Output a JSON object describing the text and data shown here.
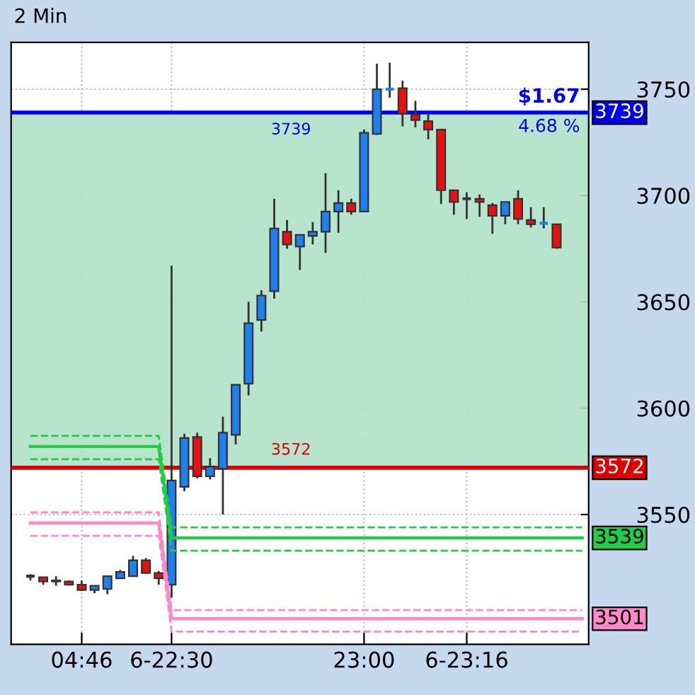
{
  "chart_data": {
    "type": "candlestick",
    "title": "2 Min",
    "categories": [
      null,
      null,
      null,
      null,
      null,
      "04:46",
      null,
      null,
      null,
      null,
      null,
      null,
      "6-22:30",
      null,
      null,
      null,
      null,
      null,
      null,
      null,
      null,
      null,
      null,
      null,
      null,
      null,
      null,
      "23:00",
      null,
      null,
      null,
      null,
      null,
      null,
      null,
      "6-23:16",
      null,
      null,
      null,
      null,
      null,
      null,
      null,
      null,
      null
    ],
    "ohlc": [
      null,
      [
        3521,
        3522,
        3519,
        3521
      ],
      [
        3520.5,
        3520.5,
        3517,
        3518.5
      ],
      [
        3519,
        3521,
        3516.5,
        3518.5
      ],
      [
        3518.5,
        3519,
        3517,
        3517
      ],
      [
        3517,
        3519,
        3514,
        3514.5
      ],
      [
        3514.5,
        3516.5,
        3513,
        3516.5
      ],
      [
        3515,
        3521,
        3512.5,
        3521
      ],
      [
        3520,
        3524,
        3520,
        3523
      ],
      [
        3521,
        3530.5,
        3521,
        3528.5
      ],
      [
        3528.5,
        3529.5,
        3522,
        3522.5
      ],
      [
        3522.5,
        3523.5,
        3517,
        3520
      ],
      [
        3517,
        3667,
        3511,
        3566
      ],
      [
        3563,
        3588,
        3561,
        3586
      ],
      [
        3586.5,
        3588.5,
        3567,
        3568
      ],
      [
        3568,
        3576.5,
        3566.5,
        3572.5
      ],
      [
        3571.5,
        3596,
        3550,
        3588.5
      ],
      [
        3587.5,
        3611,
        3583,
        3611
      ],
      [
        3611.5,
        3650,
        3606,
        3640
      ],
      [
        3641.5,
        3655.5,
        3636,
        3653
      ],
      [
        3655,
        3698.5,
        3651.5,
        3684.5
      ],
      [
        3683,
        3688.5,
        3675,
        3677
      ],
      [
        3676,
        3681.5,
        3665,
        3681.5
      ],
      [
        3681,
        3687.5,
        3677,
        3683
      ],
      [
        3683,
        3710.5,
        3673,
        3692.5
      ],
      [
        3692.5,
        3702.5,
        3682.5,
        3696.5
      ],
      [
        3696.5,
        3698.5,
        3691,
        3692.5
      ],
      [
        3692.5,
        3731,
        3692.5,
        3729.5
      ],
      [
        3729,
        3762,
        3728.5,
        3750
      ],
      [
        3750,
        3762.5,
        3746,
        3750
      ],
      [
        3750.5,
        3754,
        3732.5,
        3738.5
      ],
      [
        3738,
        3744.5,
        3732,
        3735.5
      ],
      [
        3735,
        3738,
        3726.5,
        3731
      ],
      [
        3731,
        3731,
        3696,
        3702.5
      ],
      [
        3702.5,
        3702.5,
        3691,
        3697
      ],
      [
        3698.5,
        3701.5,
        3689,
        3698.5
      ],
      [
        3698.5,
        3700.5,
        3690,
        3697
      ],
      [
        3695.5,
        3696.5,
        3682,
        3690.5
      ],
      [
        3690.5,
        3697,
        3686.5,
        3697
      ],
      [
        3698.5,
        3702.5,
        3686.5,
        3689
      ],
      [
        3688.5,
        3694.5,
        3685,
        3686.5
      ],
      [
        3687,
        3694.5,
        3684.5,
        3687
      ],
      [
        3686.5,
        3686.5,
        3675,
        3675.5
      ],
      null,
      null
    ],
    "colors": [
      null,
      "#333333",
      "#e81010",
      "#e81010",
      "#e81010",
      "#e81010",
      "#1e7ff0",
      "#1e7ff0",
      "#1e7ff0",
      "#1e7ff0",
      "#e81010",
      "#e81010",
      "#1e7ff0",
      "#1e7ff0",
      "#e81010",
      "#1e7ff0",
      "#1e7ff0",
      "#1e7ff0",
      "#1e7ff0",
      "#1e7ff0",
      "#1e7ff0",
      "#e81010",
      "#1e7ff0",
      "#1e7ff0",
      "#1e7ff0",
      "#1e7ff0",
      "#e81010",
      "#1e7ff0",
      "#1e7ff0",
      "#1e7ff0",
      "#e81010",
      "#e81010",
      "#e81010",
      "#e81010",
      "#e81010",
      "#333333",
      "#e81010",
      "#e81010",
      "#1e7ff0",
      "#e81010",
      "#e81010",
      "#1e7ff0",
      "#e81010",
      null,
      null
    ],
    "series": [
      {
        "type": "line",
        "color": "#22cc44",
        "line_style": "dashed",
        "values": [
          null,
          3587,
          3587,
          3587,
          3587,
          3587,
          3587,
          3587,
          3587,
          3587,
          3587,
          3587,
          3544,
          3544,
          3544,
          3544,
          3544,
          3544,
          3544,
          3544,
          3544,
          3544,
          3544,
          3544,
          3544,
          3544,
          3544,
          3544,
          3544,
          3544,
          3544,
          3544,
          3544,
          3544,
          3544,
          3544,
          3544,
          3544,
          3544,
          3544,
          3544,
          3544,
          3544,
          3544,
          3544
        ]
      },
      {
        "type": "line",
        "color": "#22cc44",
        "line_style": "solid",
        "values": [
          null,
          3582,
          3582,
          3582,
          3582,
          3582,
          3582,
          3582,
          3582,
          3582,
          3582,
          3582,
          3539,
          3539,
          3539,
          3539,
          3539,
          3539,
          3539,
          3539,
          3539,
          3539,
          3539,
          3539,
          3539,
          3539,
          3539,
          3539,
          3539,
          3539,
          3539,
          3539,
          3539,
          3539,
          3539,
          3539,
          3539,
          3539,
          3539,
          3539,
          3539,
          3539,
          3539,
          3539,
          3539
        ],
        "value_labels": [
          null,
          null,
          null,
          null,
          null,
          null,
          null,
          null,
          null,
          null,
          null,
          null,
          null,
          null,
          null,
          null,
          null,
          null,
          null,
          null,
          null,
          null,
          null,
          null,
          null,
          null,
          null,
          null,
          null,
          null,
          null,
          null,
          null,
          null,
          null,
          null,
          null,
          null,
          null,
          null,
          null,
          null,
          null,
          null,
          "3539"
        ]
      },
      {
        "type": "line",
        "color": "#22cc44",
        "line_style": "dashed",
        "values": [
          null,
          3576,
          3576,
          3576,
          3576,
          3576,
          3576,
          3576,
          3576,
          3576,
          3576,
          3576,
          3533,
          3533,
          3533,
          3533,
          3533,
          3533,
          3533,
          3533,
          3533,
          3533,
          3533,
          3533,
          3533,
          3533,
          3533,
          3533,
          3533,
          3533,
          3533,
          3533,
          3533,
          3533,
          3533,
          3533,
          3533,
          3533,
          3533,
          3533,
          3533,
          3533,
          3533,
          3533,
          3533
        ]
      },
      {
        "type": "line",
        "color": "#ff88c8",
        "line_style": "dashed",
        "values": [
          null,
          3551,
          3551,
          3551,
          3551,
          3551,
          3551,
          3551,
          3551,
          3551,
          3551,
          3551,
          3505,
          3505,
          3505,
          3505,
          3505,
          3505,
          3505,
          3505,
          3505,
          3505,
          3505,
          3505,
          3505,
          3505,
          3505,
          3505,
          3505,
          3505,
          3505,
          3505,
          3505,
          3505,
          3505,
          3505,
          3505,
          3505,
          3505,
          3505,
          3505,
          3505,
          3505,
          3505,
          3505
        ]
      },
      {
        "type": "line",
        "color": "#ff88c8",
        "line_style": "solid",
        "values": [
          null,
          3546,
          3546,
          3546,
          3546,
          3546,
          3546,
          3546,
          3546,
          3546,
          3546,
          3546,
          3501,
          3501,
          3501,
          3501,
          3501,
          3501,
          3501,
          3501,
          3501,
          3501,
          3501,
          3501,
          3501,
          3501,
          3501,
          3501,
          3501,
          3501,
          3501,
          3501,
          3501,
          3501,
          3501,
          3501,
          3501,
          3501,
          3501,
          3501,
          3501,
          3501,
          3501,
          3501,
          3501
        ],
        "value_labels": [
          null,
          null,
          null,
          null,
          null,
          null,
          null,
          null,
          null,
          null,
          null,
          null,
          null,
          null,
          null,
          null,
          null,
          null,
          null,
          null,
          null,
          null,
          null,
          null,
          null,
          null,
          null,
          null,
          null,
          null,
          null,
          null,
          null,
          null,
          null,
          null,
          null,
          null,
          null,
          null,
          null,
          null,
          null,
          null,
          "3501"
        ]
      },
      {
        "type": "line",
        "color": "#ff88c8",
        "line_style": "dashed",
        "values": [
          null,
          3540,
          3540,
          3540,
          3540,
          3540,
          3540,
          3540,
          3540,
          3540,
          3540,
          3540,
          3495,
          3495,
          3495,
          3495,
          3495,
          3495,
          3495,
          3495,
          3495,
          3495,
          3495,
          3495,
          3495,
          3495,
          3495,
          3495,
          3495,
          3495,
          3495,
          3495,
          3495,
          3495,
          3495,
          3495,
          3495,
          3495,
          3495,
          3495,
          3495,
          3495,
          3495,
          3495,
          3495
        ]
      }
    ],
    "ref_lines": [
      {
        "axis": "y",
        "value": 3739,
        "label": "3739",
        "color": "#0000ee",
        "line_style": "solid"
      },
      {
        "axis": "y",
        "value": 3572,
        "label": "3572",
        "color": "#dd0000",
        "line_style": "solid"
      }
    ],
    "bands": [
      {
        "axis": "y",
        "from": 3572,
        "to": 3739,
        "color": "#b0e0c8"
      }
    ],
    "annotations": [
      {
        "text": "$1.67",
        "y": 3739
      },
      {
        "text": "4.68 %",
        "y": 3739
      }
    ],
    "ylim": [
      3489,
      3772
    ],
    "yticks": [
      3550,
      3600,
      3650,
      3700,
      3750
    ],
    "grid": true
  }
}
